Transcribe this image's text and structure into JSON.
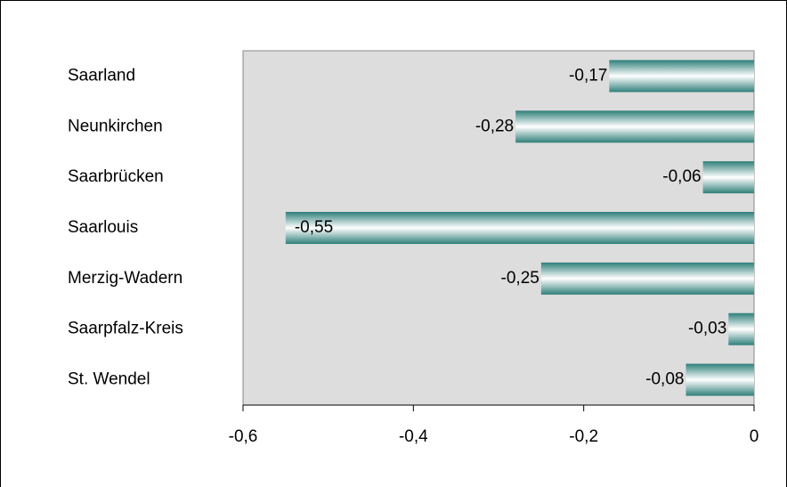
{
  "chart_data": {
    "type": "bar",
    "orientation": "horizontal",
    "categories": [
      "Saarland",
      "Neunkirchen",
      "Saarbrücken",
      "Saarlouis",
      "Merzig-Wadern",
      "Saarpfalz-Kreis",
      "St. Wendel"
    ],
    "values": [
      -0.17,
      -0.28,
      -0.06,
      -0.55,
      -0.25,
      -0.03,
      -0.08
    ],
    "value_labels": [
      "-0,17",
      "-0,28",
      "-0,06",
      "-0,55",
      "-0,25",
      "-0,03",
      "-0,08"
    ],
    "color": "#2f7f7a",
    "xlim": [
      -0.6,
      0
    ],
    "xticks": [
      {
        "value": -0.6,
        "label": "-0,6"
      },
      {
        "value": -0.4,
        "label": "-0,4"
      },
      {
        "value": -0.2,
        "label": "-0,2"
      },
      0
    ]
  }
}
